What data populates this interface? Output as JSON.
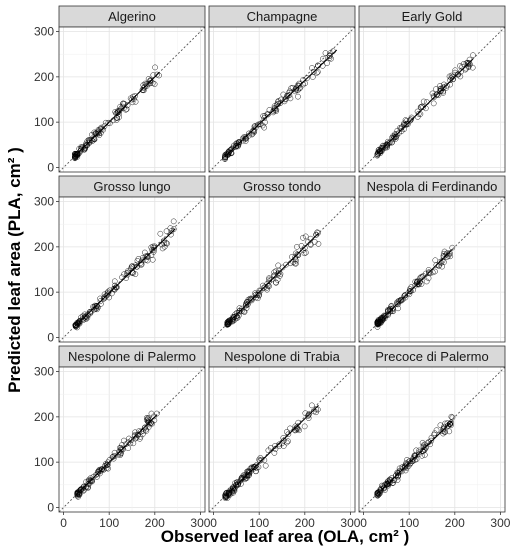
{
  "chart_data": {
    "type": "scatter",
    "facets": [
      "Algerino",
      "Champagne",
      "Early Gold",
      "Grosso lungo",
      "Grosso tondo",
      "Nespola di Ferdinando",
      "Nespolone di Palermo",
      "Nespolone di Trabia",
      "Precoce di Palermo"
    ],
    "xlabel": "Observed leaf area (OLA, cm² )",
    "ylabel": "Predicted leaf area (PLA, cm² )",
    "xlim": [
      -10,
      310
    ],
    "ylim": [
      -10,
      310
    ],
    "xticks": [
      0,
      100,
      200,
      300
    ],
    "yticks": [
      0,
      100,
      200,
      300
    ],
    "grid": true,
    "reference_line": "y = x (dotted)",
    "fit_line": "solid",
    "x_range": [
      [
        25,
        210
      ],
      [
        25,
        270
      ],
      [
        30,
        240
      ],
      [
        25,
        245
      ],
      [
        30,
        230
      ],
      [
        30,
        195
      ],
      [
        30,
        205
      ],
      [
        25,
        230
      ],
      [
        30,
        195
      ]
    ],
    "slope": [
      1.0,
      0.96,
      1.0,
      0.98,
      1.0,
      1.0,
      1.0,
      0.98,
      0.98
    ],
    "point_colors": {
      "stroke": "#000000",
      "fill": "none"
    }
  }
}
